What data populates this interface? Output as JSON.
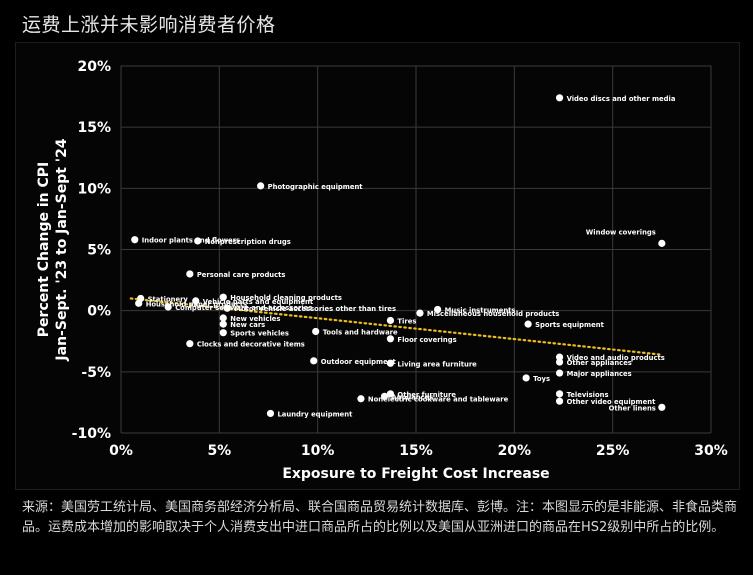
{
  "header": {
    "title": "运费上涨并未影响消费者价格"
  },
  "footer": {
    "source_note": "来源：美国劳工统计局、美国商务部经济分析局、联合国商品贸易统计数据库、彭博。注：本图显示的是非能源、非食品类商品。运费成本增加的影响取决于个人消费支出中进口商品所占的比例以及美国从亚洲进口的商品在HS2级别中所占的比例。"
  },
  "chart_data": {
    "type": "scatter",
    "xlabel": "Exposure to Freight Cost Increase",
    "ylabel": [
      "Percent Change in CPI",
      "Jan-Sept. '23 to Jan-Sept '24"
    ],
    "xlim": [
      0,
      30
    ],
    "ylim": [
      -10,
      20
    ],
    "x_ticks": [
      "0%",
      "5%",
      "10%",
      "15%",
      "20%",
      "25%",
      "30%"
    ],
    "y_ticks": [
      "20%",
      "15%",
      "10%",
      "5%",
      "0%",
      "-5%",
      "-10%"
    ],
    "grid": true,
    "trendline": {
      "x": [
        0.5,
        27.5
      ],
      "y": [
        1.0,
        -3.6
      ],
      "color": "#f2c200",
      "style": "dotted"
    },
    "colors": {
      "points": "#ffffff",
      "grid": "#3a3a3a",
      "background": "#000000"
    },
    "points": [
      {
        "label": "Video discs and other media",
        "x": 22.3,
        "y": 17.4
      },
      {
        "label": "Photographic equipment",
        "x": 7.1,
        "y": 10.2
      },
      {
        "label": "Indoor plants and flowers",
        "x": 0.7,
        "y": 5.8
      },
      {
        "label": "Nonprescription drugs",
        "x": 3.9,
        "y": 5.7
      },
      {
        "label": "Window coverings",
        "x": 27.5,
        "y": 5.5
      },
      {
        "label": "Personal care products",
        "x": 3.5,
        "y": 3.0
      },
      {
        "label": "Stationery",
        "x": 1.0,
        "y": 1.0
      },
      {
        "label": "Household paper products",
        "x": 0.9,
        "y": 0.6
      },
      {
        "label": "Computer software and accessories",
        "x": 2.4,
        "y": 0.3
      },
      {
        "label": "Vehicle parts and equipment",
        "x": 3.8,
        "y": 0.8
      },
      {
        "label": "Household cleaning products",
        "x": 5.2,
        "y": 1.1
      },
      {
        "label": "Motor vehicle accessories other than tires",
        "x": 5.4,
        "y": 0.2
      },
      {
        "label": "New vehicles",
        "x": 5.2,
        "y": -0.6
      },
      {
        "label": "New cars",
        "x": 5.2,
        "y": -1.1
      },
      {
        "label": "Sports vehicles",
        "x": 5.2,
        "y": -1.8
      },
      {
        "label": "Clocks and decorative items",
        "x": 3.5,
        "y": -2.7
      },
      {
        "label": "Outdoor equipment",
        "x": 9.8,
        "y": -4.1
      },
      {
        "label": "Laundry equipment",
        "x": 7.6,
        "y": -8.4
      },
      {
        "label": "Tools and hardware",
        "x": 9.9,
        "y": -1.7
      },
      {
        "label": "Tires",
        "x": 13.7,
        "y": -0.8
      },
      {
        "label": "Music instruments",
        "x": 16.1,
        "y": 0.1
      },
      {
        "label": "Miscellaneous household products",
        "x": 15.2,
        "y": -0.2
      },
      {
        "label": "Floor coverings",
        "x": 13.7,
        "y": -2.3
      },
      {
        "label": "Living area furniture",
        "x": 13.7,
        "y": -4.3
      },
      {
        "label": "Other furniture",
        "x": 13.7,
        "y": -6.8
      },
      {
        "label": "Appliances",
        "x": 13.4,
        "y": -7.0
      },
      {
        "label": "Nonelectric cookware and tableware",
        "x": 12.2,
        "y": -7.2
      },
      {
        "label": "Sports equipment",
        "x": 20.7,
        "y": -1.1
      },
      {
        "label": "Video and audio products",
        "x": 22.3,
        "y": -3.8
      },
      {
        "label": "Other appliances",
        "x": 22.3,
        "y": -4.2
      },
      {
        "label": "Major appliances",
        "x": 22.3,
        "y": -5.1
      },
      {
        "label": "Toys",
        "x": 20.6,
        "y": -5.5
      },
      {
        "label": "Televisions",
        "x": 22.3,
        "y": -6.8
      },
      {
        "label": "Other video equipment",
        "x": 22.3,
        "y": -7.4
      },
      {
        "label": "Other linens",
        "x": 27.5,
        "y": -7.9
      }
    ]
  }
}
